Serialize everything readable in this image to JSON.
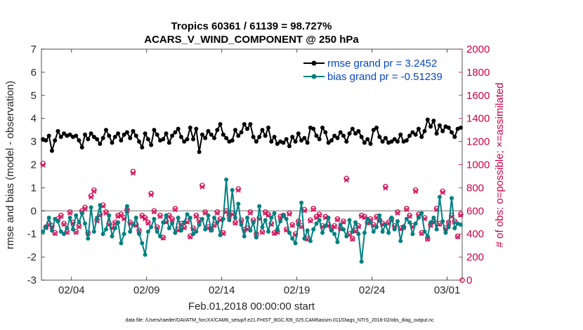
{
  "chart_data": {
    "type": "line",
    "title_line1": "Tropics 60361 / 61139 = 98.727%",
    "title_line2": "ACARS_V_WIND_COMPONENT @ 250 hPa",
    "xlabel": "Feb.01,2018 00:00:00 start",
    "ylabel_left": "rmse and bias (model - observation)",
    "ylabel_right": "# of obs: o=possible; ×=assimilated",
    "xlim": [
      1,
      29
    ],
    "ylim_left": [
      -3,
      7
    ],
    "ylim_right": [
      0,
      2000
    ],
    "x_ticks": [
      3,
      8,
      13,
      18,
      23,
      28
    ],
    "x_tick_labels": [
      "02/04",
      "02/09",
      "02/14",
      "02/19",
      "02/24",
      "03/01"
    ],
    "y_ticks_left": [
      -3,
      -2,
      -1,
      0,
      1,
      2,
      3,
      4,
      5,
      6,
      7
    ],
    "y_ticks_right": [
      0,
      200,
      400,
      600,
      800,
      1000,
      1200,
      1400,
      1600,
      1800,
      2000
    ],
    "series": [
      {
        "name": "rmse grand pr = 3.2452",
        "color": "#000000",
        "axis": "left",
        "values": [
          3.1,
          3.05,
          3.25,
          2.6,
          3.05,
          3.45,
          3.2,
          3.35,
          3.25,
          3.3,
          3.2,
          3.25,
          3.05,
          2.75,
          3.3,
          3.1,
          3.35,
          3.2,
          3.1,
          2.9,
          3.15,
          3.5,
          3.25,
          2.95,
          3.2,
          3.35,
          3.05,
          3.3,
          3.4,
          3.15,
          3.45,
          3.25,
          3.0,
          2.75,
          3.35,
          3.1,
          2.85,
          3.5,
          3.3,
          3.05,
          3.1,
          3.35,
          2.95,
          3.25,
          3.4,
          3.55,
          3.2,
          3.0,
          3.1,
          3.6,
          3.1,
          3.55,
          2.55,
          3.3,
          3.15,
          3.45,
          3.3,
          3.15,
          3.5,
          3.75,
          3.3,
          3.15,
          3.0,
          3.05,
          3.5,
          3.25,
          3.4,
          3.75,
          3.55,
          3.75,
          3.2,
          3.0,
          3.2,
          3.5,
          3.25,
          3.6,
          3.0,
          3.2,
          2.9,
          3.0,
          2.95,
          3.1,
          2.8,
          3.2,
          3.0,
          3.35,
          3.05,
          3.15,
          2.95,
          3.6,
          3.55,
          3.25,
          3.1,
          3.6,
          3.4,
          2.95,
          3.05,
          3.25,
          3.15,
          3.4,
          3.25,
          3.0,
          3.35,
          3.55,
          3.35,
          3.45,
          3.2,
          2.95,
          3.1,
          2.9,
          3.5,
          3.6,
          3.2,
          3.0,
          3.15,
          2.95,
          3.0,
          3.1,
          3.0,
          3.3,
          3.0,
          3.05,
          3.25,
          3.4,
          3.3,
          3.55,
          3.2,
          3.45,
          3.95,
          3.65,
          3.9,
          3.35,
          3.7,
          3.45,
          3.65,
          3.6,
          3.4,
          3.2,
          3.55,
          3.6
        ]
      },
      {
        "name": "bias grand pr = -0.51239",
        "color": "#008080",
        "axis": "left",
        "values": [
          -0.9,
          -0.7,
          -0.3,
          -0.85,
          -0.35,
          -0.45,
          -0.9,
          -1.0,
          -0.75,
          -0.3,
          -0.8,
          -0.2,
          -0.5,
          -0.1,
          -0.55,
          -1.2,
          0.15,
          -0.9,
          -0.3,
          0.25,
          -1.0,
          -0.8,
          -0.2,
          -1.1,
          -0.75,
          -0.5,
          -1.4,
          -1.0,
          0.2,
          -0.9,
          -0.6,
          -0.3,
          -1.0,
          -1.4,
          -1.9,
          -0.9,
          -0.7,
          -0.35,
          -0.9,
          -1.1,
          -0.5,
          -0.2,
          -0.75,
          -0.55,
          -0.95,
          -0.3,
          -0.85,
          -0.5,
          -0.15,
          -0.3,
          -1.0,
          -0.9,
          -0.6,
          -0.35,
          -0.8,
          -0.2,
          -0.85,
          -0.3,
          -0.5,
          -1.05,
          -0.35,
          1.35,
          -0.4,
          0.9,
          -0.3,
          0.3,
          -0.6,
          -1.1,
          -0.3,
          -0.85,
          -0.5,
          -1.15,
          0.2,
          -0.7,
          -0.4,
          -0.9,
          -0.3,
          -0.1,
          -0.8,
          -0.45,
          -0.2,
          -0.35,
          -0.95,
          -1.2,
          -1.4,
          -0.6,
          0.35,
          -1.2,
          -0.85,
          -1.3,
          -0.8,
          -0.55,
          -0.4,
          -0.95,
          -0.65,
          -0.3,
          -0.85,
          -1.0,
          -1.35,
          -0.6,
          -0.8,
          -1.1,
          -0.4,
          -0.9,
          -0.5,
          -1.0,
          -2.2,
          -0.95,
          -0.35,
          -0.5,
          -0.9,
          -0.7,
          -0.2,
          -0.9,
          -0.6,
          -0.95,
          -0.3,
          -0.8,
          -0.45,
          -1.3,
          -0.7,
          -0.35,
          -0.5,
          -1.0,
          -0.55,
          -0.3,
          -0.1,
          -0.9,
          -1.1,
          -0.5,
          -0.3,
          -0.8,
          0.6,
          -0.45,
          -0.95,
          -0.7,
          0.55,
          -0.75,
          -0.55,
          -0.6
        ]
      }
    ],
    "obs_possible": [
      1010,
      460,
      490,
      470,
      410,
      530,
      560,
      490,
      420,
      590,
      500,
      420,
      470,
      600,
      630,
      410,
      730,
      780,
      520,
      570,
      650,
      590,
      490,
      460,
      500,
      560,
      570,
      540,
      610,
      500,
      940,
      480,
      430,
      560,
      540,
      500,
      750,
      600,
      460,
      560,
      370,
      510,
      560,
      530,
      620,
      440,
      490,
      460,
      510,
      380,
      450,
      560,
      520,
      820,
      590,
      460,
      440,
      480,
      590,
      530,
      410,
      600,
      560,
      580,
      500,
      790,
      520,
      440,
      450,
      590,
      520,
      400,
      540,
      420,
      590,
      570,
      490,
      410,
      420,
      550,
      560,
      440,
      580,
      480,
      400,
      510,
      470,
      610,
      360,
      520,
      620,
      550,
      570,
      470,
      550,
      480,
      450,
      470,
      530,
      450,
      510,
      880,
      400,
      360,
      430,
      470,
      560,
      550,
      500,
      530,
      480,
      550,
      520,
      490,
      810,
      500,
      530,
      470,
      590,
      450,
      460,
      620,
      560,
      470,
      780,
      570,
      410,
      540,
      360,
      480,
      510,
      620,
      490,
      770,
      450,
      500,
      560,
      510,
      380,
      570
    ]
  },
  "footnote": "data file: /Users/raeder/DAI/ATM_forcXX/CAM6_setup/f.e21.FHIST_BGC.f09_025.CAM6assim.011/Diags_NTrS_2018-02/obs_diag_output.nc"
}
